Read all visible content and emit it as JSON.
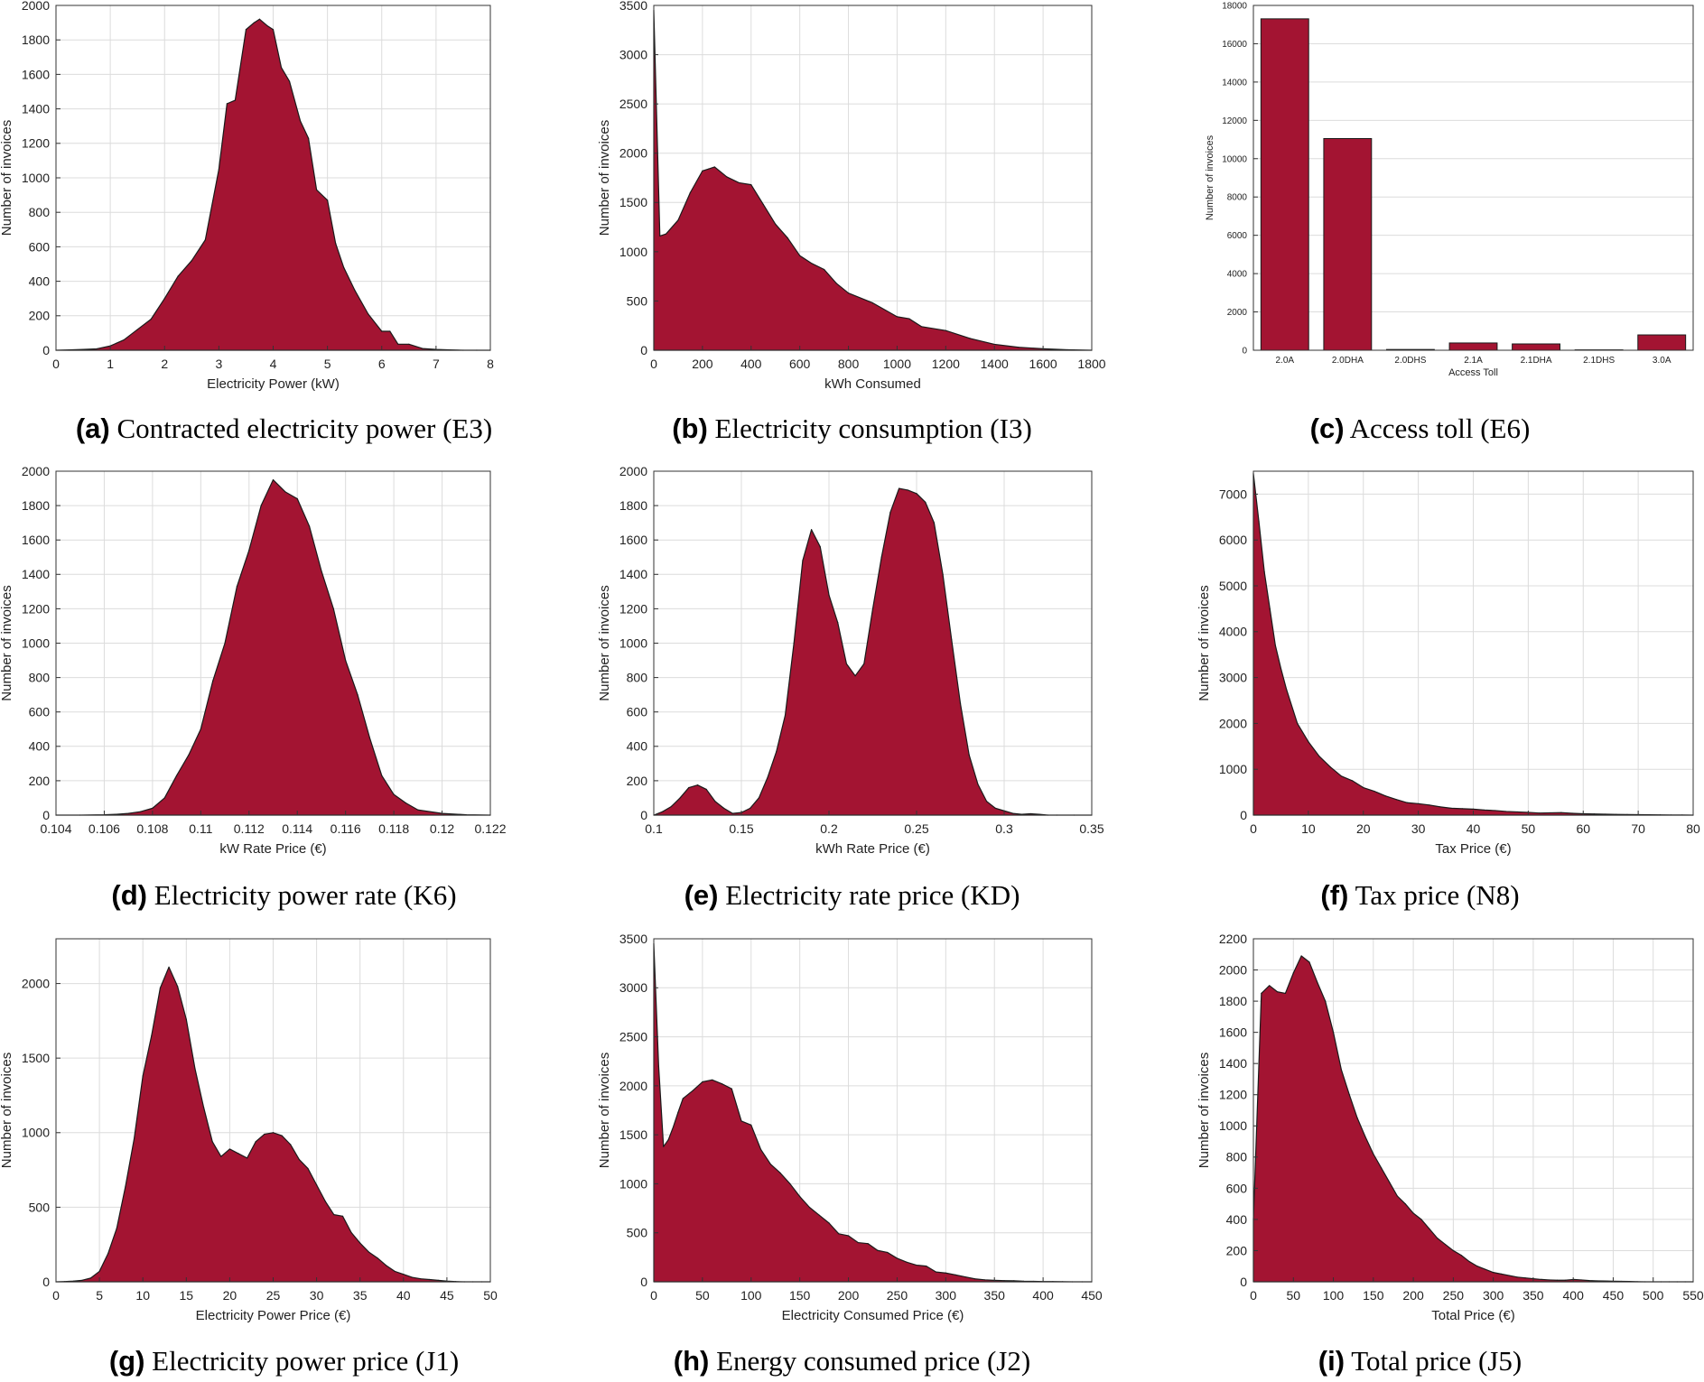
{
  "colors": {
    "fill": "#a31432",
    "stroke": "#1a1a1a",
    "grid": "#dcdcdc",
    "axis": "#333333"
  },
  "chart_data": [
    {
      "id": "a",
      "type": "area",
      "caption_label": "(a)",
      "caption_text": "Contracted electricity power (E3)",
      "xlabel": "Electricity Power (kW)",
      "ylabel": "Number of invoices",
      "xlim": [
        0,
        8
      ],
      "ylim": [
        0,
        2000
      ],
      "xticks": [
        0,
        1,
        2,
        3,
        4,
        5,
        6,
        7,
        8
      ],
      "xtick_labels": [
        "0",
        "1",
        "2",
        "3",
        "4",
        "5",
        "6",
        "7",
        "8"
      ],
      "yticks": [
        0,
        200,
        400,
        600,
        800,
        1000,
        1200,
        1400,
        1600,
        1800,
        2000
      ],
      "ytick_labels": [
        "0",
        "200",
        "400",
        "600",
        "800",
        "1000",
        "1200",
        "1400",
        "1600",
        "1800",
        "2000"
      ],
      "x": [
        0,
        0.25,
        0.5,
        0.75,
        1,
        1.25,
        1.5,
        1.75,
        2,
        2.25,
        2.5,
        2.75,
        3,
        3.15,
        3.3,
        3.5,
        3.65,
        3.75,
        3.9,
        4,
        4.15,
        4.3,
        4.5,
        4.65,
        4.8,
        5,
        5.15,
        5.3,
        5.5,
        5.75,
        6,
        6.15,
        6.3,
        6.5,
        6.75,
        7,
        7.25,
        7.5,
        7.75,
        8
      ],
      "y": [
        0,
        2,
        5,
        8,
        25,
        60,
        120,
        180,
        300,
        430,
        520,
        640,
        1050,
        1430,
        1450,
        1860,
        1900,
        1920,
        1880,
        1860,
        1640,
        1560,
        1330,
        1230,
        930,
        870,
        620,
        480,
        350,
        210,
        110,
        110,
        35,
        35,
        10,
        5,
        2,
        0,
        0,
        0
      ]
    },
    {
      "id": "b",
      "type": "area",
      "caption_label": "(b)",
      "caption_text": "Electricity consumption (I3)",
      "xlabel": "kWh Consumed",
      "ylabel": "Number of invoices",
      "xlim": [
        0,
        1800
      ],
      "ylim": [
        0,
        3500
      ],
      "xticks": [
        0,
        200,
        400,
        600,
        800,
        1000,
        1200,
        1400,
        1600,
        1800
      ],
      "xtick_labels": [
        "0",
        "200",
        "400",
        "600",
        "800",
        "1000",
        "1200",
        "1400",
        "1600",
        "1800"
      ],
      "yticks": [
        0,
        500,
        1000,
        1500,
        2000,
        2500,
        3000,
        3500
      ],
      "ytick_labels": [
        "0",
        "500",
        "1000",
        "1500",
        "2000",
        "2500",
        "3000",
        "3500"
      ],
      "x": [
        0,
        25,
        50,
        100,
        150,
        200,
        225,
        250,
        300,
        350,
        400,
        450,
        500,
        550,
        600,
        650,
        700,
        750,
        800,
        900,
        1000,
        1050,
        1100,
        1200,
        1300,
        1400,
        1500,
        1600,
        1700,
        1800
      ],
      "y": [
        3450,
        1160,
        1180,
        1320,
        1600,
        1820,
        1840,
        1860,
        1760,
        1700,
        1680,
        1480,
        1280,
        1140,
        960,
        880,
        820,
        680,
        580,
        480,
        340,
        320,
        240,
        200,
        120,
        60,
        30,
        15,
        5,
        0
      ]
    },
    {
      "id": "c",
      "type": "bar",
      "caption_label": "(c)",
      "caption_text": "Access toll (E6)",
      "xlabel": "Access Toll",
      "ylabel": "Number of invoices",
      "ylim": [
        0,
        18000
      ],
      "yticks": [
        0,
        2000,
        4000,
        6000,
        8000,
        10000,
        12000,
        14000,
        16000,
        18000
      ],
      "ytick_labels": [
        "0",
        "2000",
        "4000",
        "6000",
        "8000",
        "10000",
        "12000",
        "14000",
        "16000",
        "18000"
      ],
      "categories": [
        "2.0A",
        "2.0DHA",
        "2.0DHS",
        "2.1A",
        "2.1DHA",
        "2.1DHS",
        "3.0A"
      ],
      "values": [
        17300,
        11050,
        40,
        380,
        330,
        20,
        800
      ]
    },
    {
      "id": "d",
      "type": "area",
      "caption_label": "(d)",
      "caption_text": "Electricity power rate (K6)",
      "xlabel": "kW Rate Price (€)",
      "ylabel": "Number of invoices",
      "xlim": [
        0.104,
        0.122
      ],
      "ylim": [
        0,
        2000
      ],
      "xticks": [
        0.104,
        0.106,
        0.108,
        0.11,
        0.112,
        0.114,
        0.116,
        0.118,
        0.12,
        0.122
      ],
      "xtick_labels": [
        "0.104",
        "0.106",
        "0.108",
        "0.11",
        "0.112",
        "0.114",
        "0.116",
        "0.118",
        "0.12",
        "0.122"
      ],
      "yticks": [
        0,
        200,
        400,
        600,
        800,
        1000,
        1200,
        1400,
        1600,
        1800,
        2000
      ],
      "ytick_labels": [
        "0",
        "200",
        "400",
        "600",
        "800",
        "1000",
        "1200",
        "1400",
        "1600",
        "1800",
        "2000"
      ],
      "x": [
        0.104,
        0.105,
        0.106,
        0.1065,
        0.107,
        0.1075,
        0.108,
        0.1085,
        0.109,
        0.1095,
        0.11,
        0.1105,
        0.111,
        0.1115,
        0.112,
        0.1125,
        0.113,
        0.1135,
        0.114,
        0.1145,
        0.115,
        0.1155,
        0.116,
        0.1165,
        0.117,
        0.1175,
        0.118,
        0.1185,
        0.119,
        0.12,
        0.121,
        0.122
      ],
      "y": [
        0,
        0,
        2,
        5,
        10,
        20,
        40,
        100,
        230,
        350,
        500,
        780,
        1000,
        1330,
        1540,
        1800,
        1950,
        1880,
        1840,
        1680,
        1420,
        1200,
        900,
        700,
        450,
        230,
        120,
        70,
        30,
        10,
        2,
        0
      ]
    },
    {
      "id": "e",
      "type": "area",
      "caption_label": "(e)",
      "caption_text": "Electricity rate price (KD)",
      "xlabel": "kWh Rate Price (€)",
      "ylabel": "Number of invoices",
      "xlim": [
        0.1,
        0.35
      ],
      "ylim": [
        0,
        2000
      ],
      "xticks": [
        0.1,
        0.15,
        0.2,
        0.25,
        0.3,
        0.35
      ],
      "xtick_labels": [
        "0.1",
        "0.15",
        "0.2",
        "0.25",
        "0.3",
        "0.35"
      ],
      "yticks": [
        0,
        200,
        400,
        600,
        800,
        1000,
        1200,
        1400,
        1600,
        1800,
        2000
      ],
      "ytick_labels": [
        "0",
        "200",
        "400",
        "600",
        "800",
        "1000",
        "1200",
        "1400",
        "1600",
        "1800",
        "2000"
      ],
      "x": [
        0.1,
        0.105,
        0.11,
        0.115,
        0.12,
        0.125,
        0.13,
        0.135,
        0.14,
        0.145,
        0.15,
        0.155,
        0.16,
        0.165,
        0.17,
        0.175,
        0.18,
        0.185,
        0.19,
        0.195,
        0.2,
        0.205,
        0.21,
        0.215,
        0.22,
        0.225,
        0.23,
        0.235,
        0.24,
        0.245,
        0.25,
        0.255,
        0.26,
        0.265,
        0.27,
        0.275,
        0.28,
        0.285,
        0.29,
        0.295,
        0.3,
        0.305,
        0.31,
        0.315,
        0.32,
        0.325,
        0.33,
        0.34,
        0.35
      ],
      "y": [
        0,
        20,
        50,
        100,
        160,
        175,
        150,
        80,
        40,
        10,
        15,
        40,
        100,
        220,
        370,
        580,
        1000,
        1480,
        1660,
        1560,
        1280,
        1120,
        880,
        810,
        880,
        1200,
        1500,
        1760,
        1900,
        1890,
        1870,
        1820,
        1700,
        1400,
        1020,
        650,
        350,
        180,
        80,
        40,
        25,
        10,
        5,
        8,
        5,
        0,
        0,
        0,
        0
      ]
    },
    {
      "id": "f",
      "type": "area",
      "caption_label": "(f)",
      "caption_text": "Tax price (N8)",
      "xlabel": "Tax Price (€)",
      "ylabel": "Number of invoices",
      "xlim": [
        0,
        80
      ],
      "ylim": [
        0,
        7500
      ],
      "xticks": [
        0,
        10,
        20,
        30,
        40,
        50,
        60,
        70,
        80
      ],
      "xtick_labels": [
        "0",
        "10",
        "20",
        "30",
        "40",
        "50",
        "60",
        "70",
        "80"
      ],
      "yticks": [
        0,
        1000,
        2000,
        3000,
        4000,
        5000,
        6000,
        7000
      ],
      "ytick_labels": [
        "0",
        "1000",
        "2000",
        "3000",
        "4000",
        "5000",
        "6000",
        "7000"
      ],
      "x": [
        0,
        1,
        2,
        3,
        4,
        5,
        6,
        8,
        10,
        12,
        14,
        16,
        18,
        20,
        22,
        24,
        26,
        28,
        30,
        32,
        34,
        36,
        38,
        40,
        42,
        44,
        46,
        48,
        50,
        52,
        54,
        56,
        58,
        60,
        62,
        64,
        66,
        68,
        70,
        72,
        74,
        76,
        78,
        80
      ],
      "y": [
        7450,
        6400,
        5300,
        4500,
        3700,
        3200,
        2750,
        2000,
        1600,
        1280,
        1050,
        850,
        750,
        600,
        520,
        420,
        340,
        270,
        250,
        220,
        180,
        150,
        140,
        130,
        110,
        100,
        80,
        70,
        60,
        45,
        50,
        55,
        40,
        30,
        25,
        20,
        15,
        12,
        10,
        8,
        5,
        3,
        2,
        0
      ]
    },
    {
      "id": "g",
      "type": "area",
      "caption_label": "(g)",
      "caption_text": "Electricity power price (J1)",
      "xlabel": "Electricity Power Price (€)",
      "ylabel": "Number of invoices",
      "xlim": [
        0,
        50
      ],
      "ylim": [
        0,
        2300
      ],
      "xticks": [
        0,
        5,
        10,
        15,
        20,
        25,
        30,
        35,
        40,
        45,
        50
      ],
      "xtick_labels": [
        "0",
        "5",
        "10",
        "15",
        "20",
        "25",
        "30",
        "35",
        "40",
        "45",
        "50"
      ],
      "yticks": [
        0,
        500,
        1000,
        1500,
        2000
      ],
      "ytick_labels": [
        "0",
        "500",
        "1000",
        "1500",
        "2000"
      ],
      "x": [
        0,
        1,
        2,
        3,
        4,
        5,
        6,
        7,
        8,
        9,
        10,
        11,
        12,
        13,
        14,
        15,
        16,
        17,
        18,
        19,
        20,
        21,
        22,
        23,
        24,
        25,
        26,
        27,
        28,
        29,
        30,
        31,
        32,
        33,
        34,
        35,
        36,
        37,
        38,
        39,
        40,
        41,
        42,
        43,
        44,
        45,
        46,
        47,
        48,
        49,
        50
      ],
      "y": [
        0,
        2,
        5,
        10,
        25,
        70,
        190,
        360,
        640,
        960,
        1380,
        1650,
        1970,
        2110,
        1980,
        1760,
        1430,
        1170,
        940,
        840,
        890,
        860,
        830,
        940,
        990,
        1000,
        980,
        920,
        820,
        760,
        650,
        540,
        450,
        440,
        330,
        260,
        200,
        160,
        110,
        70,
        50,
        30,
        20,
        15,
        10,
        5,
        2,
        0,
        0,
        0,
        0
      ]
    },
    {
      "id": "h",
      "type": "area",
      "caption_label": "(h)",
      "caption_text": "Energy consumed price (J2)",
      "xlabel": "Electricity Consumed Price (€)",
      "ylabel": "Number of invoices",
      "xlim": [
        0,
        450
      ],
      "ylim": [
        0,
        3500
      ],
      "xticks": [
        0,
        50,
        100,
        150,
        200,
        250,
        300,
        350,
        400,
        450
      ],
      "xtick_labels": [
        "0",
        "50",
        "100",
        "150",
        "200",
        "250",
        "300",
        "350",
        "400",
        "450"
      ],
      "yticks": [
        0,
        500,
        1000,
        1500,
        2000,
        2500,
        3000,
        3500
      ],
      "ytick_labels": [
        "0",
        "500",
        "1000",
        "1500",
        "2000",
        "2500",
        "3000",
        "3500"
      ],
      "x": [
        0,
        5,
        10,
        15,
        20,
        25,
        30,
        40,
        50,
        60,
        70,
        80,
        90,
        100,
        110,
        120,
        130,
        140,
        150,
        160,
        170,
        180,
        190,
        200,
        210,
        220,
        230,
        240,
        250,
        260,
        270,
        280,
        290,
        300,
        310,
        320,
        330,
        340,
        350,
        360,
        370,
        380,
        390,
        400,
        410,
        420,
        430,
        440,
        450
      ],
      "y": [
        3450,
        2200,
        1380,
        1450,
        1580,
        1730,
        1870,
        1950,
        2040,
        2060,
        2020,
        1970,
        1640,
        1600,
        1350,
        1200,
        1110,
        1000,
        870,
        760,
        680,
        600,
        490,
        470,
        400,
        390,
        320,
        300,
        240,
        200,
        170,
        160,
        100,
        90,
        70,
        50,
        30,
        20,
        15,
        12,
        10,
        6,
        5,
        3,
        2,
        1,
        0,
        0,
        0
      ]
    },
    {
      "id": "i",
      "type": "area",
      "caption_label": "(i)",
      "caption_text": "Total price (J5)",
      "xlabel": "Total Price (€)",
      "ylabel": "Number of invoices",
      "xlim": [
        0,
        550
      ],
      "ylim": [
        0,
        2200
      ],
      "xticks": [
        0,
        50,
        100,
        150,
        200,
        250,
        300,
        350,
        400,
        450,
        500,
        550
      ],
      "xtick_labels": [
        "0",
        "50",
        "100",
        "150",
        "200",
        "250",
        "300",
        "350",
        "400",
        "450",
        "500",
        "550"
      ],
      "yticks": [
        0,
        200,
        400,
        600,
        800,
        1000,
        1200,
        1400,
        1600,
        1800,
        2000,
        2200
      ],
      "ytick_labels": [
        "0",
        "200",
        "400",
        "600",
        "800",
        "1000",
        "1200",
        "1400",
        "1600",
        "1800",
        "2000",
        "2200"
      ],
      "x": [
        0,
        10,
        20,
        30,
        40,
        50,
        60,
        70,
        80,
        90,
        100,
        110,
        120,
        130,
        140,
        150,
        160,
        170,
        180,
        190,
        200,
        210,
        220,
        230,
        240,
        250,
        260,
        270,
        280,
        290,
        300,
        310,
        320,
        330,
        340,
        350,
        360,
        370,
        380,
        390,
        400,
        410,
        420,
        430,
        440,
        450,
        460,
        470,
        480,
        490,
        500,
        510,
        520,
        530,
        540,
        550
      ],
      "y": [
        400,
        1850,
        1900,
        1860,
        1850,
        1980,
        2090,
        2050,
        1920,
        1800,
        1600,
        1360,
        1200,
        1050,
        930,
        820,
        730,
        640,
        550,
        500,
        440,
        400,
        340,
        280,
        240,
        200,
        170,
        130,
        100,
        80,
        60,
        50,
        40,
        30,
        25,
        20,
        15,
        12,
        10,
        10,
        15,
        12,
        8,
        6,
        5,
        4,
        3,
        2,
        1,
        0,
        0,
        0,
        0,
        0,
        0,
        0
      ]
    }
  ]
}
